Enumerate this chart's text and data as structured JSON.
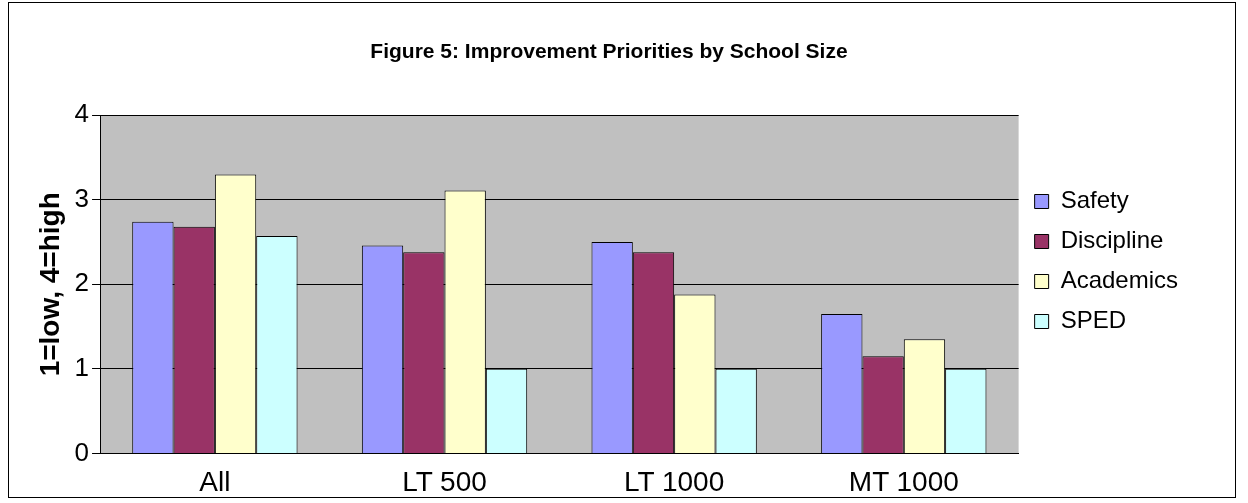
{
  "chart_data": {
    "type": "bar",
    "title": "Figure 5: Improvement Priorities by School Size",
    "ylabel": "1=low, 4=high",
    "categories": [
      "All",
      "LT 500",
      "LT 1000",
      "MT 1000"
    ],
    "series": [
      {
        "name": "Safety",
        "color": "#9999ff",
        "values": [
          2.74,
          2.46,
          2.5,
          1.65
        ]
      },
      {
        "name": "Discipline",
        "color": "#993366",
        "values": [
          2.68,
          2.38,
          2.38,
          1.15
        ]
      },
      {
        "name": "Academics",
        "color": "#ffffcc",
        "values": [
          3.3,
          3.11,
          1.88,
          1.35
        ]
      },
      {
        "name": "SPED",
        "color": "#ccffff",
        "values": [
          2.57,
          1,
          1,
          1
        ]
      }
    ],
    "ylim": [
      0,
      4
    ],
    "yticks": [
      0,
      1,
      2,
      3,
      4
    ],
    "grid": "y",
    "legend": "right"
  }
}
